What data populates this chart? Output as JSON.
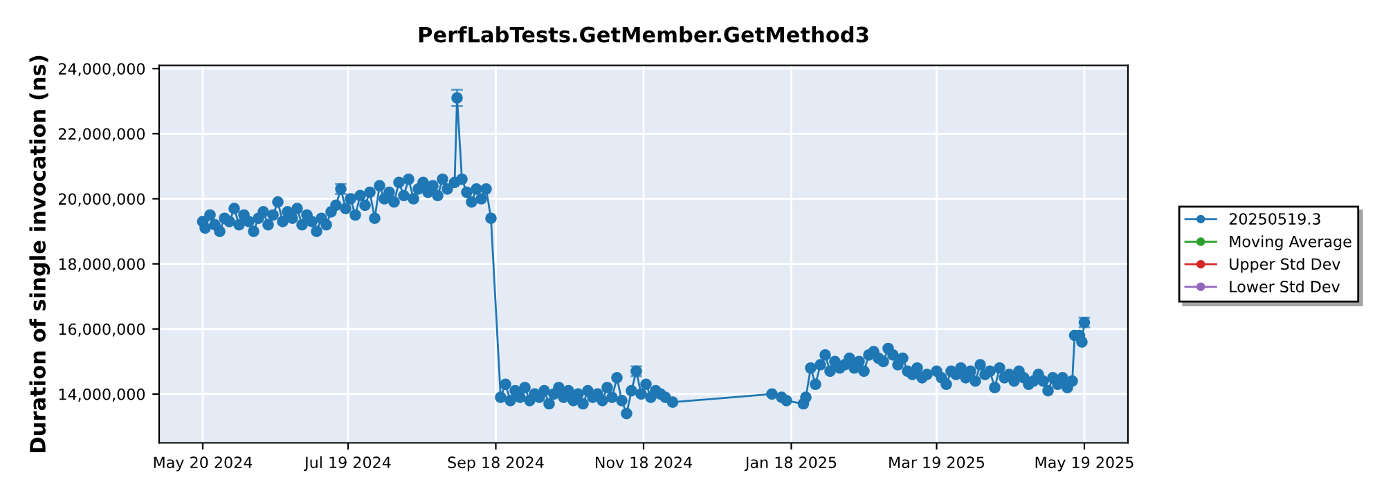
{
  "chart_data": {
    "type": "line",
    "title": "PerfLabTests.GetMember.GetMethod3",
    "ylabel": "Duration of single invocation (ns)",
    "xlim": [
      "2024-05-02",
      "2025-06-06"
    ],
    "ylim": [
      12500000,
      24100000
    ],
    "xticks": [
      {
        "value": "2024-05-20",
        "label": "May 20 2024"
      },
      {
        "value": "2024-07-19",
        "label": "Jul 19 2024"
      },
      {
        "value": "2024-09-18",
        "label": "Sep 18 2024"
      },
      {
        "value": "2024-11-18",
        "label": "Nov 18 2024"
      },
      {
        "value": "2025-01-18",
        "label": "Jan 18 2025"
      },
      {
        "value": "2025-03-19",
        "label": "Mar 19 2025"
      },
      {
        "value": "2025-05-19",
        "label": "May 19 2025"
      }
    ],
    "yticks": [
      {
        "value": 14000000,
        "label": "14,000,000"
      },
      {
        "value": 16000000,
        "label": "16,000,000"
      },
      {
        "value": 18000000,
        "label": "18,000,000"
      },
      {
        "value": 20000000,
        "label": "20,000,000"
      },
      {
        "value": 22000000,
        "label": "22,000,000"
      },
      {
        "value": 24000000,
        "label": "24,000,000"
      }
    ],
    "grid": true,
    "legend": "right",
    "marker": "circle",
    "line_style": "solid",
    "x": [
      "2024-05-20",
      "2024-05-21",
      "2024-05-23",
      "2024-05-25",
      "2024-05-27",
      "2024-05-29",
      "2024-05-31",
      "2024-06-02",
      "2024-06-04",
      "2024-06-06",
      "2024-06-08",
      "2024-06-10",
      "2024-06-12",
      "2024-06-14",
      "2024-06-16",
      "2024-06-18",
      "2024-06-20",
      "2024-06-22",
      "2024-06-24",
      "2024-06-26",
      "2024-06-28",
      "2024-06-30",
      "2024-07-02",
      "2024-07-04",
      "2024-07-06",
      "2024-07-08",
      "2024-07-10",
      "2024-07-12",
      "2024-07-14",
      "2024-07-16",
      "2024-07-18",
      "2024-07-20",
      "2024-07-22",
      "2024-07-24",
      "2024-07-26",
      "2024-07-28",
      "2024-07-30",
      "2024-08-01",
      "2024-08-03",
      "2024-08-05",
      "2024-08-07",
      "2024-08-09",
      "2024-08-11",
      "2024-08-13",
      "2024-08-15",
      "2024-08-17",
      "2024-08-19",
      "2024-08-21",
      "2024-08-23",
      "2024-08-25",
      "2024-08-27",
      "2024-08-29",
      "2024-09-01",
      "2024-09-02",
      "2024-09-04",
      "2024-09-06",
      "2024-09-08",
      "2024-09-10",
      "2024-09-12",
      "2024-09-14",
      "2024-09-16",
      "2024-09-20",
      "2024-09-22",
      "2024-09-24",
      "2024-09-26",
      "2024-09-28",
      "2024-09-30",
      "2024-10-02",
      "2024-10-04",
      "2024-10-06",
      "2024-10-08",
      "2024-10-10",
      "2024-10-12",
      "2024-10-14",
      "2024-10-16",
      "2024-10-18",
      "2024-10-20",
      "2024-10-22",
      "2024-10-24",
      "2024-10-26",
      "2024-10-28",
      "2024-10-30",
      "2024-11-01",
      "2024-11-03",
      "2024-11-05",
      "2024-11-07",
      "2024-11-09",
      "2024-11-11",
      "2024-11-13",
      "2024-11-15",
      "2024-11-17",
      "2024-11-19",
      "2024-11-21",
      "2024-11-23",
      "2024-11-25",
      "2024-11-27",
      "2024-11-30",
      "2025-01-10",
      "2025-01-14",
      "2025-01-16",
      "2025-01-23",
      "2025-01-24",
      "2025-01-26",
      "2025-01-28",
      "2025-01-30",
      "2025-02-01",
      "2025-02-03",
      "2025-02-05",
      "2025-02-07",
      "2025-02-09",
      "2025-02-11",
      "2025-02-13",
      "2025-02-15",
      "2025-02-17",
      "2025-02-19",
      "2025-02-21",
      "2025-02-23",
      "2025-02-25",
      "2025-02-27",
      "2025-03-01",
      "2025-03-03",
      "2025-03-05",
      "2025-03-07",
      "2025-03-09",
      "2025-03-11",
      "2025-03-13",
      "2025-03-15",
      "2025-03-19",
      "2025-03-21",
      "2025-03-23",
      "2025-03-25",
      "2025-03-27",
      "2025-03-29",
      "2025-03-31",
      "2025-04-02",
      "2025-04-04",
      "2025-04-06",
      "2025-04-08",
      "2025-04-10",
      "2025-04-12",
      "2025-04-14",
      "2025-04-16",
      "2025-04-18",
      "2025-04-20",
      "2025-04-22",
      "2025-04-24",
      "2025-04-26",
      "2025-04-28",
      "2025-04-30",
      "2025-05-02",
      "2025-05-04",
      "2025-05-06",
      "2025-05-08",
      "2025-05-10",
      "2025-05-12",
      "2025-05-14",
      "2025-05-15",
      "2025-05-17",
      "2025-05-18",
      "2025-05-19"
    ],
    "series": [
      {
        "name": "20250519.3",
        "color": "#1f77b4",
        "values": [
          19300000,
          19100000,
          19500000,
          19200000,
          19000000,
          19400000,
          19300000,
          19700000,
          19200000,
          19500000,
          19300000,
          19000000,
          19400000,
          19600000,
          19200000,
          19500000,
          19900000,
          19300000,
          19600000,
          19400000,
          19700000,
          19200000,
          19500000,
          19300000,
          19000000,
          19400000,
          19200000,
          19600000,
          19800000,
          20300000,
          19700000,
          20000000,
          19500000,
          20100000,
          19800000,
          20200000,
          19400000,
          20400000,
          20000000,
          20200000,
          19900000,
          20500000,
          20100000,
          20600000,
          20000000,
          20300000,
          20500000,
          20200000,
          20400000,
          20100000,
          20600000,
          20300000,
          20500000,
          23100000,
          20600000,
          20200000,
          19900000,
          20300000,
          20000000,
          20300000,
          19400000,
          13900000,
          14300000,
          13800000,
          14100000,
          13900000,
          14200000,
          13800000,
          14000000,
          13900000,
          14100000,
          13700000,
          14000000,
          14200000,
          13900000,
          14100000,
          13800000,
          14000000,
          13700000,
          14100000,
          13900000,
          14000000,
          13800000,
          14200000,
          13900000,
          14500000,
          13800000,
          13400000,
          14100000,
          14700000,
          14000000,
          14300000,
          13900000,
          14100000,
          14000000,
          13900000,
          13750000,
          14000000,
          13900000,
          13800000,
          13700000,
          13900000,
          14800000,
          14300000,
          14900000,
          15200000,
          14700000,
          15000000,
          14800000,
          14900000,
          15100000,
          14800000,
          15000000,
          14700000,
          15200000,
          15300000,
          15100000,
          15000000,
          15400000,
          15200000,
          14900000,
          15100000,
          14700000,
          14600000,
          14800000,
          14500000,
          14600000,
          14700000,
          14500000,
          14300000,
          14700000,
          14600000,
          14800000,
          14500000,
          14700000,
          14400000,
          14900000,
          14600000,
          14700000,
          14200000,
          14800000,
          14500000,
          14600000,
          14400000,
          14700000,
          14500000,
          14300000,
          14400000,
          14600000,
          14400000,
          14100000,
          14500000,
          14300000,
          14500000,
          14200000,
          14400000,
          15800000,
          15800000,
          15600000,
          16200000
        ],
        "errors": [
          null,
          null,
          null,
          null,
          null,
          null,
          null,
          null,
          null,
          null,
          null,
          null,
          null,
          null,
          null,
          null,
          null,
          null,
          null,
          null,
          null,
          null,
          null,
          null,
          null,
          null,
          null,
          null,
          null,
          150000,
          null,
          null,
          null,
          null,
          null,
          null,
          null,
          null,
          null,
          null,
          null,
          null,
          null,
          null,
          null,
          null,
          null,
          null,
          null,
          null,
          null,
          null,
          null,
          250000,
          null,
          null,
          null,
          null,
          null,
          null,
          null,
          null,
          null,
          null,
          null,
          null,
          null,
          null,
          null,
          null,
          null,
          null,
          null,
          null,
          null,
          null,
          null,
          null,
          null,
          null,
          null,
          null,
          null,
          null,
          null,
          null,
          null,
          null,
          null,
          150000,
          null,
          null,
          null,
          null,
          null,
          null,
          null,
          null,
          null,
          null,
          null,
          null,
          null,
          null,
          null,
          null,
          null,
          null,
          null,
          null,
          null,
          null,
          null,
          null,
          null,
          null,
          null,
          null,
          null,
          null,
          null,
          null,
          null,
          null,
          null,
          null,
          null,
          null,
          null,
          null,
          null,
          null,
          null,
          null,
          null,
          null,
          null,
          null,
          null,
          null,
          null,
          null,
          null,
          null,
          null,
          null,
          null,
          null,
          null,
          null,
          null,
          null,
          null,
          null,
          null,
          null,
          null,
          null,
          null,
          150000
        ]
      },
      {
        "name": "Moving Average",
        "color": "#2ca02c",
        "values": [
          null,
          null,
          null,
          null,
          null,
          null,
          null,
          null,
          null,
          null,
          null,
          null,
          null,
          null,
          null,
          null,
          null,
          null,
          null,
          null,
          null,
          null,
          null,
          null,
          null,
          null,
          null,
          null,
          null,
          null,
          null,
          null,
          null,
          null,
          null,
          null,
          null,
          null,
          null,
          null,
          null,
          null,
          null,
          null,
          null,
          null,
          null,
          null,
          null,
          null,
          null,
          null,
          null,
          null,
          null,
          null,
          null,
          null,
          null,
          null,
          null,
          null,
          null,
          null,
          null,
          null,
          null,
          null,
          null,
          null,
          null,
          null,
          null,
          null,
          null,
          null,
          null,
          null,
          null,
          null,
          null,
          null,
          null,
          null,
          null,
          null,
          null,
          null,
          null,
          null,
          null,
          null,
          null,
          null,
          null,
          null,
          null,
          null,
          null,
          null,
          null,
          null,
          null,
          null,
          null,
          null,
          null,
          null,
          null,
          null,
          null,
          null,
          null,
          null,
          null,
          null,
          null,
          null,
          null,
          null,
          null,
          null,
          null,
          null,
          null,
          null,
          null,
          null,
          null,
          null,
          null,
          null,
          null,
          null,
          null,
          null,
          null,
          null,
          null,
          null,
          null,
          null,
          null,
          null,
          null,
          null,
          null,
          null,
          null,
          null,
          null,
          null,
          null,
          null,
          null,
          null,
          null,
          null,
          null,
          null
        ]
      },
      {
        "name": "Upper Std Dev",
        "color": "#d62728",
        "values": [
          null,
          null,
          null,
          null,
          null,
          null,
          null,
          null,
          null,
          null,
          null,
          null,
          null,
          null,
          null,
          null,
          null,
          null,
          null,
          null,
          null,
          null,
          null,
          null,
          null,
          null,
          null,
          null,
          null,
          null,
          null,
          null,
          null,
          null,
          null,
          null,
          null,
          null,
          null,
          null,
          null,
          null,
          null,
          null,
          null,
          null,
          null,
          null,
          null,
          null,
          null,
          null,
          null,
          null,
          null,
          null,
          null,
          null,
          null,
          null,
          null,
          null,
          null,
          null,
          null,
          null,
          null,
          null,
          null,
          null,
          null,
          null,
          null,
          null,
          null,
          null,
          null,
          null,
          null,
          null,
          null,
          null,
          null,
          null,
          null,
          null,
          null,
          null,
          null,
          null,
          null,
          null,
          null,
          null,
          null,
          null,
          null,
          null,
          null,
          null,
          null,
          null,
          null,
          null,
          null,
          null,
          null,
          null,
          null,
          null,
          null,
          null,
          null,
          null,
          null,
          null,
          null,
          null,
          null,
          null,
          null,
          null,
          null,
          null,
          null,
          null,
          null,
          null,
          null,
          null,
          null,
          null,
          null,
          null,
          null,
          null,
          null,
          null,
          null,
          null,
          null,
          null,
          null,
          null,
          null,
          null,
          null,
          null,
          null,
          null,
          null,
          null,
          null,
          null,
          null,
          null,
          null,
          null,
          null,
          null
        ]
      },
      {
        "name": "Lower Std Dev",
        "color": "#9467bd",
        "values": [
          null,
          null,
          null,
          null,
          null,
          null,
          null,
          null,
          null,
          null,
          null,
          null,
          null,
          null,
          null,
          null,
          null,
          null,
          null,
          null,
          null,
          null,
          null,
          null,
          null,
          null,
          null,
          null,
          null,
          null,
          null,
          null,
          null,
          null,
          null,
          null,
          null,
          null,
          null,
          null,
          null,
          null,
          null,
          null,
          null,
          null,
          null,
          null,
          null,
          null,
          null,
          null,
          null,
          null,
          null,
          null,
          null,
          null,
          null,
          null,
          null,
          null,
          null,
          null,
          null,
          null,
          null,
          null,
          null,
          null,
          null,
          null,
          null,
          null,
          null,
          null,
          null,
          null,
          null,
          null,
          null,
          null,
          null,
          null,
          null,
          null,
          null,
          null,
          null,
          null,
          null,
          null,
          null,
          null,
          null,
          null,
          null,
          null,
          null,
          null,
          null,
          null,
          null,
          null,
          null,
          null,
          null,
          null,
          null,
          null,
          null,
          null,
          null,
          null,
          null,
          null,
          null,
          null,
          null,
          null,
          null,
          null,
          null,
          null,
          null,
          null,
          null,
          null,
          null,
          null,
          null,
          null,
          null,
          null,
          null,
          null,
          null,
          null,
          null,
          null,
          null,
          null,
          null,
          null,
          null,
          null,
          null,
          null,
          null,
          null,
          null,
          null,
          null,
          null,
          null,
          null,
          null,
          null,
          null,
          null
        ]
      }
    ]
  }
}
